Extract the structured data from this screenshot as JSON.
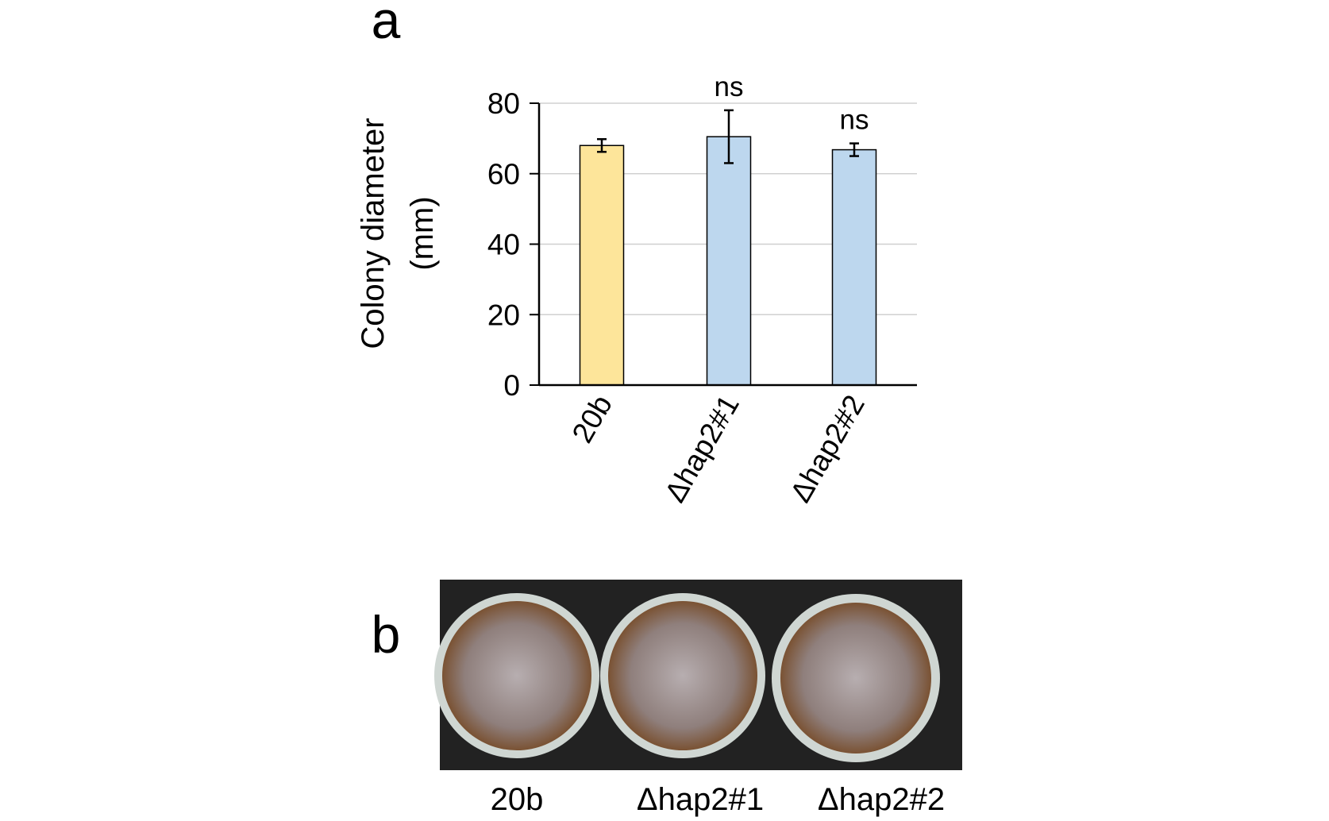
{
  "chart_data": {
    "type": "bar",
    "panel_label": "a",
    "ylabel_lines": [
      "Colony diameter",
      "(mm)"
    ],
    "categories": [
      "20b",
      "Δhap2#1",
      "Δhap2#2"
    ],
    "values": [
      68,
      70.5,
      66.8
    ],
    "errors": [
      1.8,
      7.5,
      1.8
    ],
    "colors": [
      "#fde59a",
      "#bdd7ee",
      "#bdd7ee"
    ],
    "bar_annotations": [
      null,
      "ns",
      "ns"
    ],
    "ylim": [
      0,
      80
    ],
    "yticks": [
      0,
      20,
      40,
      60,
      80
    ],
    "grid": true
  },
  "panel_b": {
    "label": "b",
    "captions": [
      "20b",
      "Δhap2#1",
      "Δhap2#2"
    ]
  }
}
